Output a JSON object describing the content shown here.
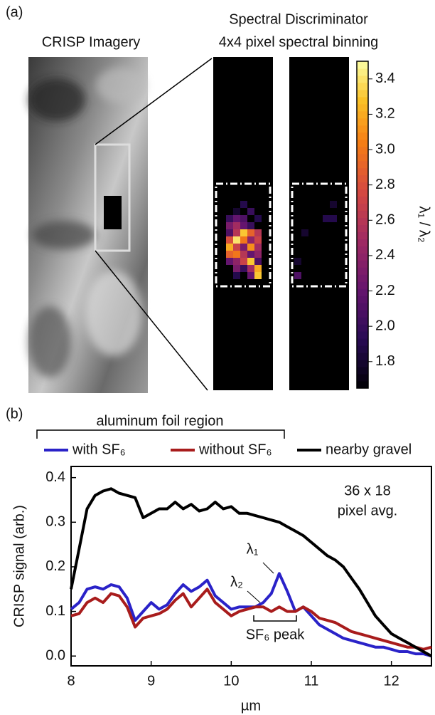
{
  "panel_a": {
    "label": "(a)",
    "image_title": "CRISP Imagery",
    "title": "Spectral Discriminator",
    "subtitle": "4x4 pixel spectral binning",
    "heatmap": {
      "type": "heatmap",
      "colormap": "inferno",
      "clim": [
        1.65,
        3.5
      ],
      "colorbar_label": "λ₁ / λ₂",
      "cticks": [
        1.8,
        {
          "value": 2,
          "label": "2.0"
        },
        2.2,
        2.4,
        2.6,
        2.8,
        {
          "value": 3,
          "label": "3.0"
        },
        3.2,
        3.4
      ],
      "with_sf6": [
        [
          null,
          null,
          null,
          null,
          null,
          null,
          null
        ],
        [
          null,
          null,
          null,
          null,
          null,
          null,
          null
        ],
        [
          null,
          null,
          null,
          1.9,
          null,
          null,
          null
        ],
        [
          null,
          null,
          1.8,
          null,
          2.0,
          null,
          null
        ],
        [
          null,
          2.0,
          2.2,
          2.1,
          null,
          1.9,
          null
        ],
        [
          null,
          2.3,
          2.5,
          2.2,
          2.0,
          null,
          null
        ],
        [
          null,
          2.1,
          2.6,
          3.3,
          2.9,
          2.6,
          null
        ],
        [
          null,
          2.8,
          3.4,
          3.0,
          2.4,
          2.7,
          null
        ],
        [
          null,
          3.2,
          2.7,
          2.3,
          3.1,
          2.5,
          null
        ],
        [
          null,
          2.9,
          3.0,
          2.6,
          2.2,
          2.4,
          null
        ],
        [
          null,
          2.2,
          2.4,
          2.7,
          3.3,
          2.1,
          null
        ],
        [
          null,
          null,
          2.3,
          2.0,
          2.5,
          3.2,
          null
        ],
        [
          null,
          null,
          1.9,
          null,
          2.2,
          3.3,
          null
        ],
        [
          null,
          null,
          null,
          null,
          null,
          null,
          null
        ]
      ],
      "without_sf6": [
        [
          null,
          null,
          null,
          null,
          null,
          null,
          null
        ],
        [
          null,
          null,
          null,
          null,
          null,
          null,
          null
        ],
        [
          null,
          null,
          null,
          null,
          null,
          1.8,
          null
        ],
        [
          null,
          null,
          null,
          null,
          null,
          null,
          null
        ],
        [
          null,
          null,
          null,
          null,
          1.9,
          1.9,
          null
        ],
        [
          null,
          null,
          null,
          null,
          null,
          null,
          null
        ],
        [
          null,
          1.8,
          null,
          null,
          null,
          null,
          null
        ],
        [
          null,
          null,
          null,
          null,
          null,
          null,
          null
        ],
        [
          null,
          null,
          null,
          null,
          null,
          null,
          null
        ],
        [
          null,
          null,
          null,
          null,
          null,
          null,
          null
        ],
        [
          1.8,
          null,
          null,
          null,
          null,
          null,
          null
        ],
        [
          null,
          null,
          null,
          null,
          null,
          null,
          null
        ],
        [
          2.1,
          null,
          null,
          null,
          null,
          null,
          null
        ],
        [
          null,
          null,
          null,
          null,
          null,
          null,
          null
        ]
      ]
    }
  },
  "chart_data": {
    "type": "line",
    "label": "(b)",
    "legend_group": "aluminum foil region",
    "x_label": "µm",
    "y_label": "CRISP signal (arb.)",
    "annotations": [
      "36 x 18",
      "pixel avg.",
      "λ₁",
      "λ₂",
      "SF₆ peak"
    ],
    "xlim": [
      8,
      12.5
    ],
    "xticks": [
      8,
      9,
      10,
      11,
      12
    ],
    "ylim": [
      -0.022,
      0.425
    ],
    "yticks": [
      {
        "value": 0,
        "label": "0.0"
      },
      0.1,
      0.2,
      0.3,
      0.4
    ],
    "x": [
      8.0,
      8.1,
      8.2,
      8.3,
      8.4,
      8.5,
      8.6,
      8.7,
      8.8,
      8.9,
      9.0,
      9.1,
      9.2,
      9.3,
      9.4,
      9.5,
      9.6,
      9.7,
      9.8,
      9.9,
      10.0,
      10.1,
      10.2,
      10.3,
      10.4,
      10.5,
      10.6,
      10.7,
      10.8,
      10.9,
      11.0,
      11.1,
      11.2,
      11.3,
      11.4,
      11.5,
      11.6,
      11.7,
      11.8,
      11.9,
      12.0,
      12.1,
      12.2,
      12.3,
      12.4,
      12.5
    ],
    "series": [
      {
        "name": "with SF₆",
        "color": "#2a22c8",
        "values": [
          0.105,
          0.12,
          0.15,
          0.155,
          0.15,
          0.16,
          0.155,
          0.13,
          0.08,
          0.1,
          0.12,
          0.105,
          0.115,
          0.14,
          0.16,
          0.145,
          0.155,
          0.17,
          0.135,
          0.12,
          0.105,
          0.11,
          0.11,
          0.11,
          0.12,
          0.14,
          0.185,
          0.145,
          0.1,
          0.11,
          0.09,
          0.07,
          0.06,
          0.05,
          0.04,
          0.035,
          0.03,
          0.025,
          0.02,
          0.02,
          0.015,
          0.01,
          0.01,
          0.005,
          0.005,
          0.0
        ]
      },
      {
        "name": "without SF₆",
        "color": "#a81c1c",
        "values": [
          0.09,
          0.095,
          0.12,
          0.13,
          0.12,
          0.14,
          0.135,
          0.11,
          0.065,
          0.085,
          0.09,
          0.095,
          0.105,
          0.125,
          0.14,
          0.11,
          0.13,
          0.15,
          0.12,
          0.105,
          0.09,
          0.1,
          0.105,
          0.11,
          0.11,
          0.1,
          0.11,
          0.1,
          0.1,
          0.11,
          0.1,
          0.085,
          0.08,
          0.075,
          0.065,
          0.055,
          0.05,
          0.045,
          0.04,
          0.035,
          0.03,
          0.025,
          0.02,
          0.02,
          0.015,
          0.02
        ]
      },
      {
        "name": "nearby gravel",
        "color": "#000000",
        "values": [
          0.15,
          0.24,
          0.33,
          0.36,
          0.37,
          0.375,
          0.365,
          0.36,
          0.355,
          0.31,
          0.32,
          0.33,
          0.33,
          0.345,
          0.33,
          0.34,
          0.325,
          0.33,
          0.345,
          0.33,
          0.335,
          0.32,
          0.32,
          0.315,
          0.31,
          0.305,
          0.3,
          0.29,
          0.28,
          0.27,
          0.255,
          0.24,
          0.225,
          0.215,
          0.2,
          0.175,
          0.15,
          0.12,
          0.09,
          0.07,
          0.05,
          0.04,
          0.03,
          0.02,
          0.01,
          0.0
        ]
      }
    ]
  }
}
